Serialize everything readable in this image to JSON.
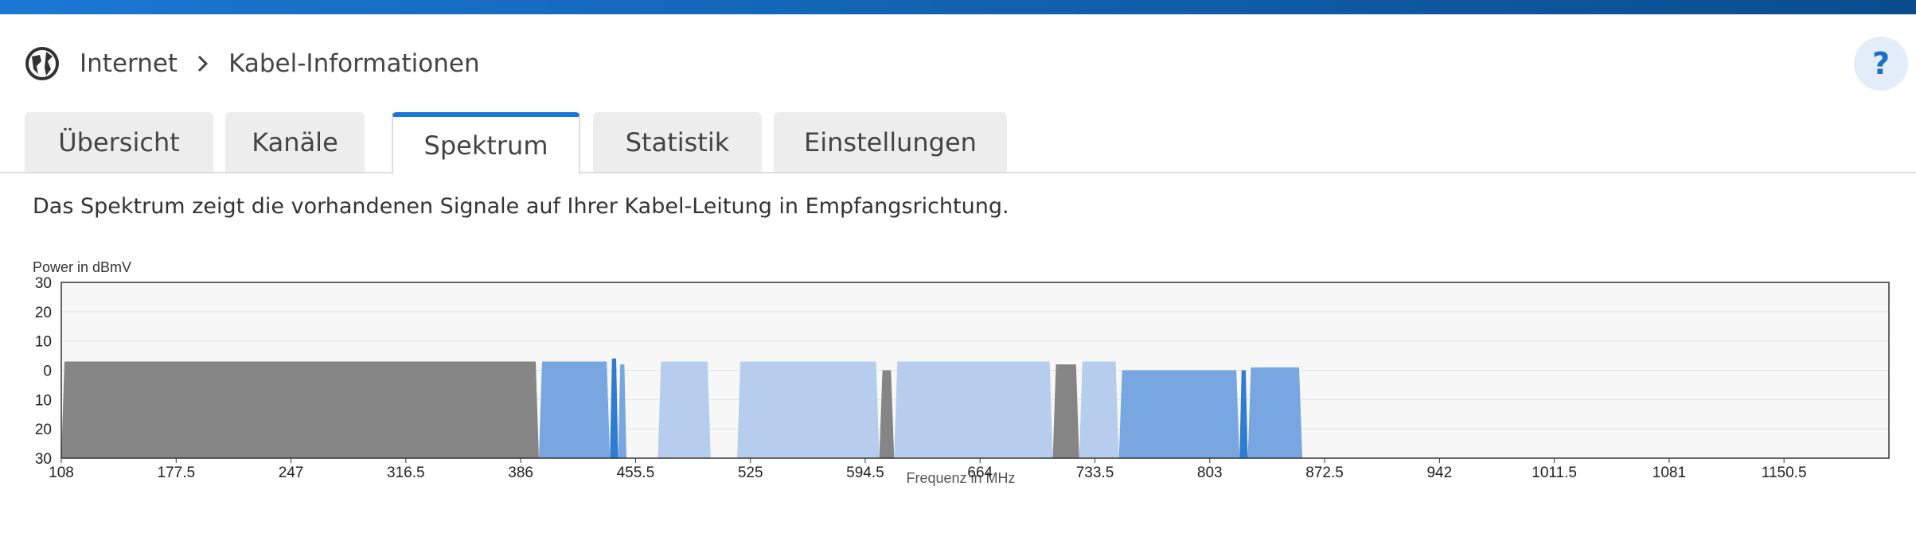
{
  "breadcrumb": {
    "items": [
      "Internet",
      "Kabel-Informationen"
    ],
    "help": "?"
  },
  "tabs": {
    "items": [
      "Übersicht",
      "Kanäle",
      "Spektrum",
      "Statistik",
      "Einstellungen"
    ],
    "active": 2
  },
  "description": "Das Spektrum zeigt die vorhandenen Signale auf Ihrer Kabel-Leitung in Empfangsrichtung.",
  "chart_data": {
    "type": "area",
    "y_label": "Power in dBmV",
    "x_label": "Frequenz in MHz",
    "xlim": [
      108,
      1214
    ],
    "ylim": [
      -30,
      30
    ],
    "xticks": [
      108,
      177.5,
      247,
      316.5,
      386,
      455.5,
      525,
      594.5,
      664,
      733.5,
      803,
      872.5,
      942,
      1011.5,
      1081,
      1150.5
    ],
    "yticks": [
      30,
      20,
      10,
      0,
      {
        "value": -10,
        "label": "10"
      },
      {
        "value": -20,
        "label": "20"
      },
      {
        "value": -30,
        "label": "30"
      }
    ],
    "grid": true,
    "bands": [
      {
        "start": 108,
        "end": 397,
        "level": 3,
        "color": "#858585"
      },
      {
        "start": 397,
        "end": 440,
        "level": 3,
        "color": "#78a6e0"
      },
      {
        "start": 440,
        "end": 445,
        "level": 4,
        "color": "#2f7dd1"
      },
      {
        "start": 445,
        "end": 450,
        "level": 2,
        "color": "#78a6e0"
      },
      {
        "start": 469,
        "end": 501,
        "level": 3,
        "color": "#b6cdee"
      },
      {
        "start": 517,
        "end": 603,
        "level": 3,
        "color": "#b6cdee"
      },
      {
        "start": 603,
        "end": 612,
        "level": 0,
        "color": "#858585"
      },
      {
        "start": 612,
        "end": 708,
        "level": 3,
        "color": "#b6cdee"
      },
      {
        "start": 708,
        "end": 724,
        "level": 2,
        "color": "#858585"
      },
      {
        "start": 724,
        "end": 748,
        "level": 3,
        "color": "#b6cdee"
      },
      {
        "start": 748,
        "end": 821,
        "level": 0,
        "color": "#78a6e0"
      },
      {
        "start": 821,
        "end": 826,
        "level": 0,
        "color": "#2f7dd1"
      },
      {
        "start": 826,
        "end": 859,
        "level": 1,
        "color": "#78a6e0"
      }
    ]
  }
}
